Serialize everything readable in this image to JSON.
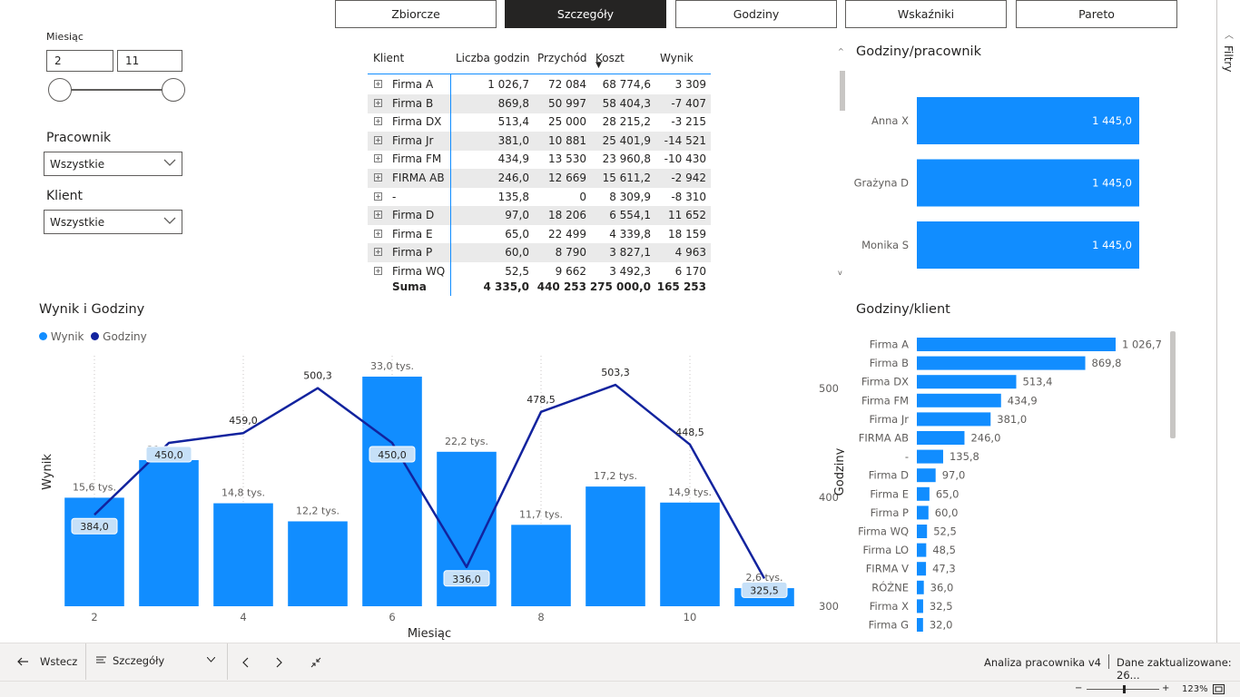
{
  "nav": {
    "tabs": [
      {
        "label": "Zbiorcze",
        "active": false
      },
      {
        "label": "Szczegóły",
        "active": true
      },
      {
        "label": "Godziny",
        "active": false
      },
      {
        "label": "Wskaźniki",
        "active": false
      },
      {
        "label": "Pareto",
        "active": false
      }
    ]
  },
  "filters_pane": {
    "label": "Filtry",
    "icon": "chevron-up-icon"
  },
  "slicers": {
    "month": {
      "title": "Miesiąc",
      "from": "2",
      "to": "11",
      "range_min": 2,
      "range_max": 11
    },
    "employee": {
      "title": "Pracownik",
      "value": "Wszystkie"
    },
    "client": {
      "title": "Klient",
      "value": "Wszystkie"
    }
  },
  "matrix": {
    "columns": [
      "Klient",
      "Liczba godzin",
      "Przychód",
      "Koszt",
      "Wynik"
    ],
    "sort_indicator": "▼",
    "rows": [
      [
        "Firma A",
        "1 026,7",
        "72 084",
        "68 774,6",
        "3 309"
      ],
      [
        "Firma B",
        "869,8",
        "50 997",
        "58 404,3",
        "-7 407"
      ],
      [
        "Firma DX",
        "513,4",
        "25 000",
        "28 215,2",
        "-3 215"
      ],
      [
        "Firma Jr",
        "381,0",
        "10 881",
        "25 401,9",
        "-14 521"
      ],
      [
        "Firma FM",
        "434,9",
        "13 530",
        "23 960,8",
        "-10 430"
      ],
      [
        "FIRMA AB",
        "246,0",
        "12 669",
        "15 611,2",
        "-2 942"
      ],
      [
        "-",
        "135,8",
        "0",
        "8 309,9",
        "-8 310"
      ],
      [
        "Firma D",
        "97,0",
        "18 206",
        "6 554,1",
        "11 652"
      ],
      [
        "Firma E",
        "65,0",
        "22 499",
        "4 339,8",
        "18 159"
      ],
      [
        "Firma P",
        "60,0",
        "8 790",
        "3 827,1",
        "4 963"
      ],
      [
        "Firma WQ",
        "52,5",
        "9 662",
        "3 492,3",
        "6 170"
      ]
    ],
    "total": [
      "Suma",
      "4 335,0",
      "440 253",
      "275 000,0",
      "165 253"
    ]
  },
  "chart_data": [
    {
      "type": "bar",
      "orientation": "horizontal",
      "title": "Godziny/pracownik",
      "categories": [
        "Anna X",
        "Grażyna D",
        "Monika S"
      ],
      "values": [
        1445.0,
        1445.0,
        1445.0
      ],
      "labels": [
        "1 445,0",
        "1 445,0",
        "1 445,0"
      ],
      "color": "#118dff"
    },
    {
      "type": "combo",
      "title": "Wynik i Godziny",
      "legend": [
        {
          "name": "Wynik",
          "color": "#118dff"
        },
        {
          "name": "Godziny",
          "color": "#12239e"
        }
      ],
      "legend_position": "top-left",
      "xlabel": "Miesiąc",
      "ylabel_left": "Wynik",
      "ylabel_right": "Godziny",
      "x": [
        2,
        3,
        4,
        5,
        6,
        7,
        8,
        9,
        10,
        11
      ],
      "x_tick_labels": [
        "2",
        "4",
        "6",
        "8",
        "10"
      ],
      "x_tick_values": [
        2,
        4,
        6,
        8,
        10
      ],
      "bars": {
        "name": "Wynik",
        "values": [
          15.6,
          21.0,
          14.8,
          12.2,
          33.0,
          22.2,
          11.7,
          17.2,
          14.9,
          2.6
        ],
        "labels": [
          "15,6 tys.",
          "21,0 tys.",
          "14,8 tys.",
          "12,2 tys.",
          "33,0 tys.",
          "22,2 tys.",
          "11,7 tys.",
          "17,2 tys.",
          "14,9 tys.",
          "2,6 tys."
        ]
      },
      "line": {
        "name": "Godziny",
        "values": [
          384.0,
          450.0,
          459.0,
          500.3,
          450.0,
          336.0,
          478.5,
          503.3,
          448.5,
          325.5
        ],
        "labels": [
          "384,0",
          "450,0",
          "459,0",
          "500,3",
          "450,0",
          "336,0",
          "478,5",
          "503,3",
          "448,5",
          "325,5"
        ],
        "label_boxed": [
          true,
          true,
          false,
          false,
          true,
          true,
          false,
          false,
          false,
          true
        ]
      },
      "y_right_ticks": [
        "300",
        "400",
        "500"
      ],
      "y_right_tick_values": [
        300,
        400,
        500
      ],
      "y_right_range": [
        300,
        530
      ],
      "y_left_range": [
        0,
        36
      ]
    },
    {
      "type": "bar",
      "orientation": "horizontal",
      "title": "Godziny/klient",
      "categories": [
        "Firma A",
        "Firma B",
        "Firma DX",
        "Firma FM",
        "Firma Jr",
        "FIRMA AB",
        "-",
        "Firma D",
        "Firma E",
        "Firma P",
        "Firma WQ",
        "Firma LO",
        "FIRMA V",
        "RÓŻNE",
        "Firma X",
        "Firma G"
      ],
      "values": [
        1026.7,
        869.8,
        513.4,
        434.9,
        381.0,
        246.0,
        135.8,
        97.0,
        65.0,
        60.0,
        52.5,
        48.5,
        47.3,
        36.0,
        32.5,
        32.0
      ],
      "labels": [
        "1 026,7",
        "869,8",
        "513,4",
        "434,9",
        "381,0",
        "246,0",
        "135,8",
        "97,0",
        "65,0",
        "60,0",
        "52,5",
        "48,5",
        "47,3",
        "36,0",
        "32,5",
        "32,0"
      ],
      "color": "#118dff"
    }
  ],
  "statusbar": {
    "back_label": "Wstecz",
    "page_label": "Szczegóły",
    "report_name": "Analiza pracownika v4",
    "updated_label": "Dane zaktualizowane: 26...",
    "zoom_label": "123%",
    "zoom_minus": "−",
    "zoom_plus": "+"
  }
}
